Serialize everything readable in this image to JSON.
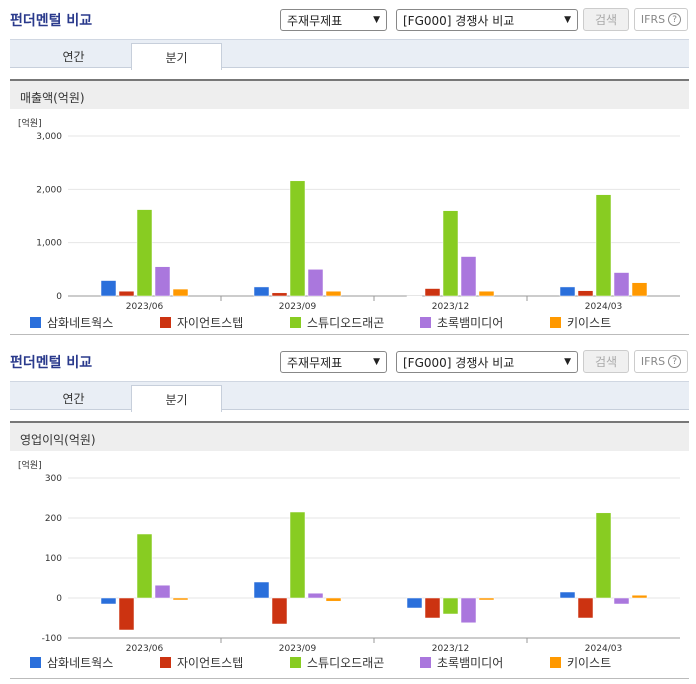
{
  "sections": [
    {
      "title": "펀더멘털 비교",
      "select_a": "주재무제표",
      "select_b": "[FG000] 경쟁사 비교",
      "search_label": "검색",
      "ifrs_label": "IFRS",
      "tabs": [
        "연간",
        "분기"
      ],
      "active_tab": "분기",
      "subheader": "매출액(억원)"
    },
    {
      "title": "펀더멘털 비교",
      "select_a": "주재무제표",
      "select_b": "[FG000] 경쟁사 비교",
      "search_label": "검색",
      "ifrs_label": "IFRS",
      "tabs": [
        "연간",
        "분기"
      ],
      "active_tab": "분기",
      "subheader": "영업이익(억원)"
    }
  ],
  "colors": {
    "삼화네트웍스": "#2a6fdb",
    "자이언트스텝": "#cc3311",
    "스튜디오드래곤": "#88cc22",
    "초록뱀미디어": "#aa77dd",
    "키이스트": "#ff9900"
  },
  "chart_data": [
    {
      "type": "bar",
      "unit": "[억원]",
      "categories": [
        "2023/06",
        "2023/09",
        "2023/12",
        "2024/03"
      ],
      "ylim": [
        0,
        3000
      ],
      "yticks": [
        0,
        1000,
        2000,
        3000
      ],
      "ytick_labels": [
        "0",
        "1,000",
        "2,000",
        "3,000"
      ],
      "series": [
        {
          "name": "삼화네트웍스",
          "values": [
            290,
            170,
            0,
            170
          ]
        },
        {
          "name": "자이언트스텝",
          "values": [
            90,
            60,
            140,
            100
          ]
        },
        {
          "name": "스튜디오드래곤",
          "values": [
            1620,
            2160,
            1600,
            1900
          ]
        },
        {
          "name": "초록뱀미디어",
          "values": [
            550,
            500,
            740,
            440
          ]
        },
        {
          "name": "키이스트",
          "values": [
            130,
            90,
            90,
            250
          ]
        }
      ]
    },
    {
      "type": "bar",
      "unit": "[억원]",
      "categories": [
        "2023/06",
        "2023/09",
        "2023/12",
        "2024/03"
      ],
      "ylim": [
        -100,
        300
      ],
      "yticks": [
        -100,
        0,
        100,
        200,
        300
      ],
      "ytick_labels": [
        "-100",
        "0",
        "100",
        "200",
        "300"
      ],
      "series": [
        {
          "name": "삼화네트웍스",
          "values": [
            -15,
            40,
            -25,
            15
          ]
        },
        {
          "name": "자이언트스텝",
          "values": [
            -80,
            -65,
            -50,
            -50
          ]
        },
        {
          "name": "스튜디오드래곤",
          "values": [
            160,
            215,
            -40,
            213
          ]
        },
        {
          "name": "초록뱀미디어",
          "values": [
            32,
            12,
            -62,
            -15
          ]
        },
        {
          "name": "키이스트",
          "values": [
            -5,
            -8,
            -5,
            7
          ]
        }
      ]
    }
  ]
}
